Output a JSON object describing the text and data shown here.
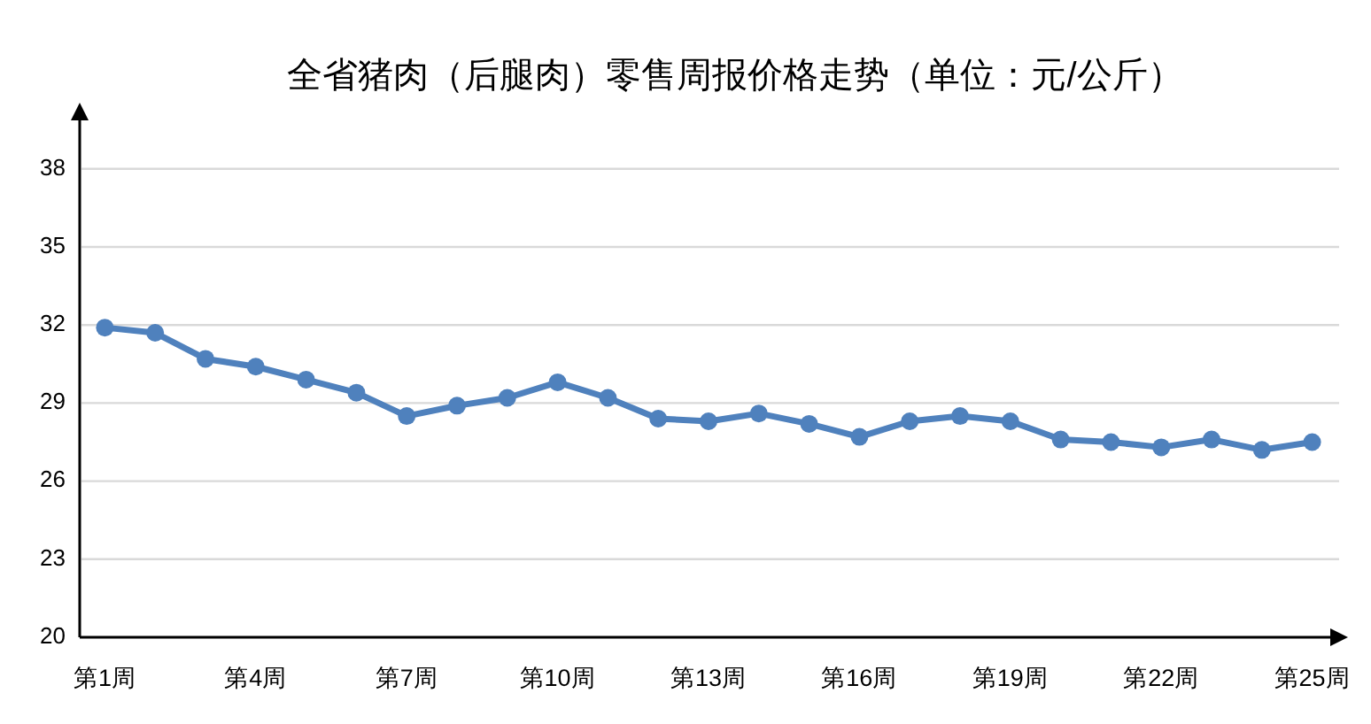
{
  "chart_data": {
    "type": "line",
    "title": "全省猪肉（后腿肉）零售周报价格走势（单位：元/公斤）",
    "categories": [
      "第1周",
      null,
      null,
      "第4周",
      null,
      null,
      "第7周",
      null,
      null,
      "第10周",
      null,
      null,
      "第13周",
      null,
      null,
      "第16周",
      null,
      null,
      "第19周",
      null,
      null,
      "第22周",
      null,
      null,
      "第25周"
    ],
    "values": [
      31.9,
      31.7,
      30.7,
      30.4,
      29.9,
      29.4,
      28.5,
      28.9,
      29.2,
      29.8,
      29.2,
      28.4,
      28.3,
      28.6,
      28.2,
      27.7,
      28.3,
      28.5,
      28.3,
      27.6,
      27.5,
      27.3,
      27.6,
      27.2,
      27.5
    ],
    "color": "#4f81bd",
    "ylim": [
      20,
      40
    ],
    "yticks": [
      20,
      23,
      26,
      29,
      32,
      35,
      38
    ],
    "grid": "y",
    "marker": "circle",
    "line_style": "solid"
  }
}
